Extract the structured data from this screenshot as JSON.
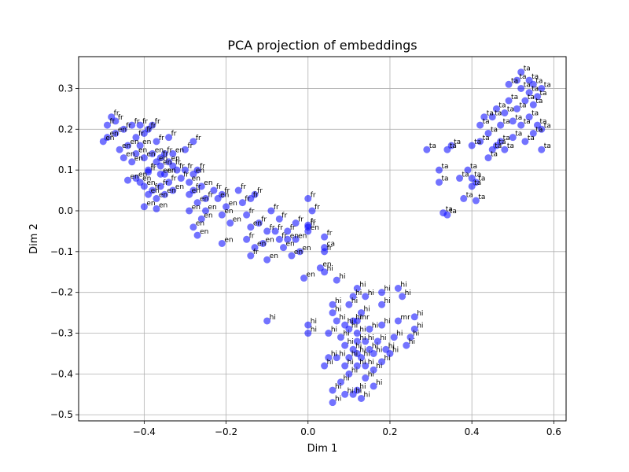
{
  "chart_data": {
    "type": "scatter",
    "title": "PCA projection of embeddings",
    "xlabel": "Dim 1",
    "ylabel": "Dim 2",
    "xlim": [
      -0.56,
      0.63
    ],
    "ylim": [
      -0.515,
      0.378
    ],
    "xticks": [
      -0.4,
      -0.2,
      0.0,
      0.2,
      0.4,
      0.6
    ],
    "yticks": [
      -0.5,
      -0.4,
      -0.3,
      -0.2,
      -0.1,
      0.0,
      0.1,
      0.2,
      0.3
    ],
    "xtick_labels": [
      "−0.4",
      "−0.2",
      "0.0",
      "0.2",
      "0.4",
      "0.6"
    ],
    "ytick_labels": [
      "−0.5",
      "−0.4",
      "−0.3",
      "−0.2",
      "−0.1",
      "0.0",
      "0.1",
      "0.2",
      "0.3"
    ],
    "grid": true,
    "marker_color": "#0000ff",
    "marker_alpha": 0.55,
    "points": [
      {
        "x": -0.5,
        "y": 0.17,
        "label": "en"
      },
      {
        "x": -0.49,
        "y": 0.18,
        "label": "en"
      },
      {
        "x": -0.49,
        "y": 0.21,
        "label": "fr"
      },
      {
        "x": -0.48,
        "y": 0.23,
        "label": "fr"
      },
      {
        "x": -0.47,
        "y": 0.22,
        "label": "fr"
      },
      {
        "x": -0.47,
        "y": 0.19,
        "label": "en"
      },
      {
        "x": -0.46,
        "y": 0.15,
        "label": "en"
      },
      {
        "x": -0.45,
        "y": 0.2,
        "label": "fr"
      },
      {
        "x": -0.45,
        "y": 0.13,
        "label": "en"
      },
      {
        "x": -0.44,
        "y": 0.16,
        "label": "en"
      },
      {
        "x": -0.43,
        "y": 0.12,
        "label": "en"
      },
      {
        "x": -0.43,
        "y": 0.21,
        "label": "fr"
      },
      {
        "x": -0.42,
        "y": 0.18,
        "label": "fr"
      },
      {
        "x": -0.42,
        "y": 0.14,
        "label": "en"
      },
      {
        "x": -0.41,
        "y": 0.21,
        "label": "fr"
      },
      {
        "x": -0.41,
        "y": 0.16,
        "label": "en"
      },
      {
        "x": -0.4,
        "y": 0.19,
        "label": "fr"
      },
      {
        "x": -0.4,
        "y": 0.13,
        "label": "en"
      },
      {
        "x": -0.39,
        "y": 0.2,
        "label": "fr"
      },
      {
        "x": -0.39,
        "y": 0.1,
        "label": "fr"
      },
      {
        "x": -0.38,
        "y": 0.14,
        "label": "en"
      },
      {
        "x": -0.38,
        "y": 0.21,
        "label": "fr"
      },
      {
        "x": -0.37,
        "y": 0.12,
        "label": "en"
      },
      {
        "x": -0.37,
        "y": 0.17,
        "label": "fr"
      },
      {
        "x": -0.36,
        "y": 0.13,
        "label": "fr"
      },
      {
        "x": -0.36,
        "y": 0.11,
        "label": "en"
      },
      {
        "x": -0.35,
        "y": 0.14,
        "label": "fr"
      },
      {
        "x": -0.35,
        "y": 0.09,
        "label": "en"
      },
      {
        "x": -0.34,
        "y": 0.12,
        "label": "en"
      },
      {
        "x": -0.34,
        "y": 0.18,
        "label": "fr"
      },
      {
        "x": -0.33,
        "y": 0.11,
        "label": "fr"
      },
      {
        "x": -0.33,
        "y": 0.14,
        "label": "en"
      },
      {
        "x": -0.32,
        "y": 0.1,
        "label": "fr"
      },
      {
        "x": -0.42,
        "y": 0.08,
        "label": "en"
      },
      {
        "x": -0.41,
        "y": 0.07,
        "label": "en"
      },
      {
        "x": -0.4,
        "y": 0.06,
        "label": "en"
      },
      {
        "x": -0.39,
        "y": 0.04,
        "label": "en"
      },
      {
        "x": -0.38,
        "y": 0.05,
        "label": "fr"
      },
      {
        "x": -0.37,
        "y": 0.03,
        "label": "en"
      },
      {
        "x": -0.36,
        "y": 0.06,
        "label": "fr"
      },
      {
        "x": -0.35,
        "y": 0.04,
        "label": "en"
      },
      {
        "x": -0.4,
        "y": 0.01,
        "label": "en"
      },
      {
        "x": -0.37,
        "y": 0.005,
        "label": "en"
      },
      {
        "x": -0.44,
        "y": 0.075,
        "label": "en"
      },
      {
        "x": -0.39,
        "y": 0.095,
        "label": "fr"
      },
      {
        "x": -0.36,
        "y": 0.09,
        "label": "en"
      },
      {
        "x": -0.34,
        "y": 0.07,
        "label": "fr"
      },
      {
        "x": -0.33,
        "y": 0.05,
        "label": "en"
      },
      {
        "x": -0.31,
        "y": 0.08,
        "label": "fr"
      },
      {
        "x": -0.3,
        "y": 0.15,
        "label": "fr"
      },
      {
        "x": -0.3,
        "y": 0.1,
        "label": "fr"
      },
      {
        "x": -0.29,
        "y": 0.07,
        "label": "en"
      },
      {
        "x": -0.29,
        "y": 0.04,
        "label": "en"
      },
      {
        "x": -0.28,
        "y": 0.17,
        "label": "fr"
      },
      {
        "x": -0.28,
        "y": 0.09,
        "label": "en"
      },
      {
        "x": -0.28,
        "y": 0.05,
        "label": "fr"
      },
      {
        "x": -0.27,
        "y": 0.02,
        "label": "en"
      },
      {
        "x": -0.27,
        "y": 0.1,
        "label": "fr"
      },
      {
        "x": -0.26,
        "y": 0.06,
        "label": "en"
      },
      {
        "x": -0.25,
        "y": 0.03,
        "label": "fr"
      },
      {
        "x": -0.29,
        "y": 0.0,
        "label": "en"
      },
      {
        "x": -0.28,
        "y": -0.04,
        "label": "en"
      },
      {
        "x": -0.27,
        "y": -0.06,
        "label": "en"
      },
      {
        "x": -0.26,
        "y": -0.02,
        "label": "en"
      },
      {
        "x": -0.25,
        "y": 0.0,
        "label": "en"
      },
      {
        "x": -0.23,
        "y": 0.05,
        "label": "fr"
      },
      {
        "x": -0.22,
        "y": 0.03,
        "label": "en"
      },
      {
        "x": -0.21,
        "y": 0.04,
        "label": "fr"
      },
      {
        "x": -0.21,
        "y": -0.01,
        "label": "en"
      },
      {
        "x": -0.2,
        "y": 0.01,
        "label": "en"
      },
      {
        "x": -0.19,
        "y": -0.03,
        "label": "en"
      },
      {
        "x": -0.21,
        "y": -0.08,
        "label": "en"
      },
      {
        "x": -0.17,
        "y": 0.05,
        "label": "fr"
      },
      {
        "x": -0.16,
        "y": 0.02,
        "label": "fr"
      },
      {
        "x": -0.15,
        "y": -0.01,
        "label": "fr"
      },
      {
        "x": -0.14,
        "y": 0.03,
        "label": "fr"
      },
      {
        "x": -0.14,
        "y": -0.04,
        "label": "en"
      },
      {
        "x": -0.13,
        "y": 0.04,
        "label": "fr"
      },
      {
        "x": -0.12,
        "y": -0.03,
        "label": "fr"
      },
      {
        "x": -0.15,
        "y": -0.07,
        "label": "fr"
      },
      {
        "x": -0.14,
        "y": -0.11,
        "label": "fr"
      },
      {
        "x": -0.13,
        "y": -0.09,
        "label": "en"
      },
      {
        "x": -0.11,
        "y": -0.08,
        "label": "en"
      },
      {
        "x": -0.1,
        "y": -0.12,
        "label": "en"
      },
      {
        "x": -0.08,
        "y": -0.05,
        "label": "fr"
      },
      {
        "x": -0.07,
        "y": -0.02,
        "label": "fr"
      },
      {
        "x": -0.06,
        "y": -0.09,
        "label": "en"
      },
      {
        "x": -0.05,
        "y": -0.05,
        "label": "fr"
      },
      {
        "x": -0.04,
        "y": -0.11,
        "label": "en"
      },
      {
        "x": -0.07,
        "y": -0.07,
        "label": "fr"
      },
      {
        "x": -0.05,
        "y": -0.07,
        "label": "en"
      },
      {
        "x": -0.03,
        "y": -0.03,
        "label": "fr"
      },
      {
        "x": -0.03,
        "y": -0.07,
        "label": "en"
      },
      {
        "x": -0.02,
        "y": -0.1,
        "label": "en"
      },
      {
        "x": 0.0,
        "y": -0.05,
        "label": "en"
      },
      {
        "x": 0.0,
        "y": 0.03,
        "label": "fr"
      },
      {
        "x": 0.01,
        "y": 0.0,
        "label": "fr"
      },
      {
        "x": 0.0,
        "y": -0.04,
        "label": "fr"
      },
      {
        "x": 0.04,
        "y": -0.09,
        "label": "ca"
      },
      {
        "x": 0.04,
        "y": -0.1,
        "label": "fr"
      },
      {
        "x": 0.03,
        "y": -0.14,
        "label": "en"
      },
      {
        "x": -0.01,
        "y": -0.165,
        "label": "en"
      },
      {
        "x": 0.04,
        "y": -0.064,
        "label": "fr"
      },
      {
        "x": -0.09,
        "y": 0.0,
        "label": "fr"
      },
      {
        "x": -0.1,
        "y": -0.05,
        "label": "fr"
      },
      {
        "x": 0.0,
        "y": -0.035,
        "label": "fr"
      },
      {
        "x": 0.07,
        "y": -0.17,
        "label": "hi"
      },
      {
        "x": 0.04,
        "y": -0.15,
        "label": "hi"
      },
      {
        "x": 0.06,
        "y": -0.23,
        "label": "hi"
      },
      {
        "x": 0.06,
        "y": -0.25,
        "label": "hi"
      },
      {
        "x": 0.11,
        "y": -0.21,
        "label": "hi"
      },
      {
        "x": 0.12,
        "y": -0.19,
        "label": "hi"
      },
      {
        "x": 0.14,
        "y": -0.21,
        "label": "hi"
      },
      {
        "x": 0.18,
        "y": -0.2,
        "label": "hi"
      },
      {
        "x": 0.18,
        "y": -0.23,
        "label": "hi"
      },
      {
        "x": 0.13,
        "y": -0.25,
        "label": "hi"
      },
      {
        "x": 0.1,
        "y": -0.23,
        "label": "hi"
      },
      {
        "x": 0.11,
        "y": -0.27,
        "label": "hi"
      },
      {
        "x": 0.12,
        "y": -0.27,
        "label": "mr"
      },
      {
        "x": 0.09,
        "y": -0.28,
        "label": "hi"
      },
      {
        "x": 0.07,
        "y": -0.27,
        "label": "hi"
      },
      {
        "x": 0.05,
        "y": -0.3,
        "label": "hi"
      },
      {
        "x": 0.08,
        "y": -0.31,
        "label": "hi"
      },
      {
        "x": 0.1,
        "y": -0.29,
        "label": "hi"
      },
      {
        "x": 0.12,
        "y": -0.3,
        "label": "hi"
      },
      {
        "x": 0.14,
        "y": -0.32,
        "label": "hi"
      },
      {
        "x": 0.11,
        "y": -0.34,
        "label": "hi"
      },
      {
        "x": 0.09,
        "y": -0.33,
        "label": "hi"
      },
      {
        "x": 0.07,
        "y": -0.36,
        "label": "hi"
      },
      {
        "x": 0.13,
        "y": -0.36,
        "label": "hi"
      },
      {
        "x": 0.15,
        "y": -0.34,
        "label": "hi"
      },
      {
        "x": 0.17,
        "y": -0.32,
        "label": "hi"
      },
      {
        "x": 0.19,
        "y": -0.34,
        "label": "hi"
      },
      {
        "x": 0.21,
        "y": -0.31,
        "label": "hi"
      },
      {
        "x": 0.18,
        "y": -0.28,
        "label": "hi"
      },
      {
        "x": 0.22,
        "y": -0.27,
        "label": "mr"
      },
      {
        "x": 0.24,
        "y": -0.33,
        "label": "hi"
      },
      {
        "x": 0.26,
        "y": -0.29,
        "label": "hi"
      },
      {
        "x": 0.22,
        "y": -0.19,
        "label": "hi"
      },
      {
        "x": 0.23,
        "y": -0.21,
        "label": "hi"
      },
      {
        "x": 0.26,
        "y": -0.26,
        "label": "hi"
      },
      {
        "x": 0.25,
        "y": -0.31,
        "label": "hi"
      },
      {
        "x": 0.2,
        "y": -0.35,
        "label": "hi"
      },
      {
        "x": 0.18,
        "y": -0.37,
        "label": "hi"
      },
      {
        "x": 0.16,
        "y": -0.39,
        "label": "hi"
      },
      {
        "x": 0.14,
        "y": -0.41,
        "label": "hi"
      },
      {
        "x": 0.12,
        "y": -0.38,
        "label": "hi"
      },
      {
        "x": 0.1,
        "y": -0.4,
        "label": "hi"
      },
      {
        "x": 0.08,
        "y": -0.42,
        "label": "hi"
      },
      {
        "x": 0.06,
        "y": -0.44,
        "label": "hi"
      },
      {
        "x": 0.09,
        "y": -0.45,
        "label": "hi"
      },
      {
        "x": 0.12,
        "y": -0.44,
        "label": "hi"
      },
      {
        "x": 0.13,
        "y": -0.46,
        "label": "hi"
      },
      {
        "x": 0.16,
        "y": -0.43,
        "label": "hi"
      },
      {
        "x": 0.06,
        "y": -0.47,
        "label": "hi"
      },
      {
        "x": 0.11,
        "y": -0.45,
        "label": "hi"
      },
      {
        "x": 0.04,
        "y": -0.38,
        "label": "hi"
      },
      {
        "x": 0.05,
        "y": -0.36,
        "label": "hi"
      },
      {
        "x": 0.1,
        "y": -0.36,
        "label": "hi"
      },
      {
        "x": 0.12,
        "y": -0.35,
        "label": "hi"
      },
      {
        "x": 0.14,
        "y": -0.38,
        "label": "hi"
      },
      {
        "x": 0.09,
        "y": -0.38,
        "label": "hi"
      },
      {
        "x": 0.0,
        "y": -0.28,
        "label": "hi"
      },
      {
        "x": 0.0,
        "y": -0.3,
        "label": "hi"
      },
      {
        "x": -0.1,
        "y": -0.27,
        "label": "hi"
      },
      {
        "x": 0.15,
        "y": -0.29,
        "label": "hi"
      },
      {
        "x": 0.12,
        "y": -0.32,
        "label": "hi"
      },
      {
        "x": 0.16,
        "y": -0.35,
        "label": "hi"
      },
      {
        "x": 0.29,
        "y": 0.15,
        "label": "ta"
      },
      {
        "x": 0.32,
        "y": 0.1,
        "label": "ta"
      },
      {
        "x": 0.32,
        "y": 0.07,
        "label": "ta"
      },
      {
        "x": 0.34,
        "y": 0.15,
        "label": "ta"
      },
      {
        "x": 0.35,
        "y": 0.16,
        "label": "ta"
      },
      {
        "x": 0.33,
        "y": -0.005,
        "label": "ta"
      },
      {
        "x": 0.34,
        "y": -0.01,
        "label": "ta"
      },
      {
        "x": 0.37,
        "y": 0.08,
        "label": "ta"
      },
      {
        "x": 0.38,
        "y": 0.03,
        "label": "ta"
      },
      {
        "x": 0.39,
        "y": 0.1,
        "label": "ta"
      },
      {
        "x": 0.4,
        "y": 0.08,
        "label": "ta"
      },
      {
        "x": 0.4,
        "y": 0.06,
        "label": "ta"
      },
      {
        "x": 0.41,
        "y": 0.07,
        "label": "ta"
      },
      {
        "x": 0.41,
        "y": 0.025,
        "label": "ta"
      },
      {
        "x": 0.4,
        "y": 0.16,
        "label": "ta"
      },
      {
        "x": 0.42,
        "y": 0.17,
        "label": "ta"
      },
      {
        "x": 0.42,
        "y": 0.21,
        "label": "ta"
      },
      {
        "x": 0.43,
        "y": 0.23,
        "label": "ta"
      },
      {
        "x": 0.44,
        "y": 0.19,
        "label": "ta"
      },
      {
        "x": 0.44,
        "y": 0.13,
        "label": "ta"
      },
      {
        "x": 0.45,
        "y": 0.15,
        "label": "ta"
      },
      {
        "x": 0.46,
        "y": 0.16,
        "label": "ta"
      },
      {
        "x": 0.46,
        "y": 0.25,
        "label": "ta"
      },
      {
        "x": 0.47,
        "y": 0.17,
        "label": "ta"
      },
      {
        "x": 0.48,
        "y": 0.15,
        "label": "ta"
      },
      {
        "x": 0.49,
        "y": 0.31,
        "label": "ta"
      },
      {
        "x": 0.49,
        "y": 0.27,
        "label": "ta"
      },
      {
        "x": 0.5,
        "y": 0.22,
        "label": "ta"
      },
      {
        "x": 0.5,
        "y": 0.18,
        "label": "ta"
      },
      {
        "x": 0.51,
        "y": 0.32,
        "label": "ta"
      },
      {
        "x": 0.51,
        "y": 0.25,
        "label": "ta"
      },
      {
        "x": 0.52,
        "y": 0.3,
        "label": "ta"
      },
      {
        "x": 0.52,
        "y": 0.21,
        "label": "ta"
      },
      {
        "x": 0.52,
        "y": 0.34,
        "label": "ta"
      },
      {
        "x": 0.53,
        "y": 0.27,
        "label": "ta"
      },
      {
        "x": 0.53,
        "y": 0.17,
        "label": "ta"
      },
      {
        "x": 0.54,
        "y": 0.32,
        "label": "ta"
      },
      {
        "x": 0.54,
        "y": 0.29,
        "label": "ta"
      },
      {
        "x": 0.54,
        "y": 0.23,
        "label": "ta"
      },
      {
        "x": 0.55,
        "y": 0.31,
        "label": "ta"
      },
      {
        "x": 0.55,
        "y": 0.26,
        "label": "ta"
      },
      {
        "x": 0.55,
        "y": 0.19,
        "label": "ta"
      },
      {
        "x": 0.56,
        "y": 0.28,
        "label": "ta"
      },
      {
        "x": 0.56,
        "y": 0.21,
        "label": "ta"
      },
      {
        "x": 0.57,
        "y": 0.15,
        "label": "ta"
      },
      {
        "x": 0.57,
        "y": 0.3,
        "label": "ta"
      },
      {
        "x": 0.57,
        "y": 0.2,
        "label": "ta"
      },
      {
        "x": 0.48,
        "y": 0.24,
        "label": "ta"
      },
      {
        "x": 0.47,
        "y": 0.21,
        "label": "ta"
      },
      {
        "x": 0.45,
        "y": 0.23,
        "label": "ta"
      }
    ]
  }
}
